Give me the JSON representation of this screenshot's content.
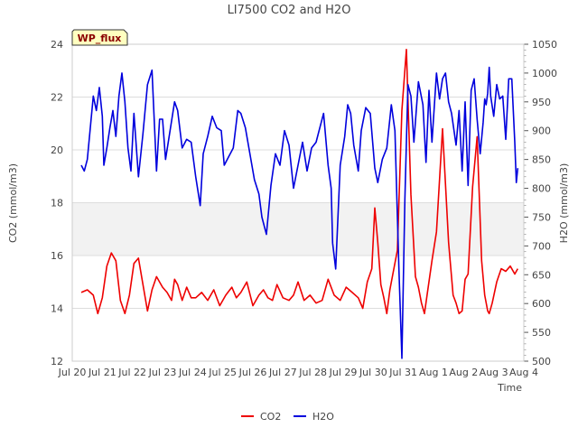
{
  "chart_data": {
    "type": "line",
    "title": "LI7500 CO2 and H2O",
    "badge": "WP_flux",
    "xlabel": "Time",
    "ylabel_left": "CO2 (mmol/m3)",
    "ylabel_right": "H2O (mmol/m3)",
    "ylim_left": [
      12,
      24
    ],
    "ylim_right": [
      500,
      1050
    ],
    "xlim_days": [
      0,
      15
    ],
    "x_tick_labels": [
      "Jul 20",
      "Jul 21",
      "Jul 22",
      "Jul 23",
      "Jul 24",
      "Jul 25",
      "Jul 26",
      "Jul 27",
      "Jul 28",
      "Jul 29",
      "Jul 30",
      "Jul 31",
      "Aug 1",
      "Aug 2",
      "Aug 3",
      "Aug 4"
    ],
    "y_left_ticks": [
      12,
      14,
      16,
      18,
      20,
      22,
      24
    ],
    "y_right_ticks": [
      500,
      550,
      600,
      650,
      700,
      750,
      800,
      850,
      900,
      950,
      1000,
      1050
    ],
    "grid": true,
    "legend_position": "bottom-center",
    "colors": {
      "CO2": "#ee0000",
      "H2O": "#0000dd",
      "band": "#f2f2f2",
      "badge_bg": "#ffffc0",
      "badge_text": "#8b0000"
    },
    "series": [
      {
        "name": "CO2",
        "axis": "left",
        "x": [
          0.3,
          0.5,
          0.7,
          0.85,
          1.0,
          1.15,
          1.3,
          1.45,
          1.6,
          1.75,
          1.9,
          2.05,
          2.2,
          2.35,
          2.5,
          2.65,
          2.8,
          3.0,
          3.15,
          3.3,
          3.4,
          3.5,
          3.65,
          3.8,
          3.95,
          4.1,
          4.3,
          4.5,
          4.7,
          4.9,
          5.1,
          5.3,
          5.45,
          5.6,
          5.8,
          6.0,
          6.2,
          6.35,
          6.5,
          6.65,
          6.8,
          7.0,
          7.2,
          7.35,
          7.5,
          7.7,
          7.9,
          8.1,
          8.3,
          8.5,
          8.7,
          8.9,
          9.1,
          9.3,
          9.5,
          9.65,
          9.8,
          9.95,
          10.05,
          10.15,
          10.25,
          10.35,
          10.45,
          10.55,
          10.65,
          10.8,
          10.95,
          11.1,
          11.25,
          11.4,
          11.5,
          11.55,
          11.6,
          11.7,
          11.8,
          11.95,
          12.1,
          12.3,
          12.5,
          12.65,
          12.75,
          12.85,
          12.95,
          13.05,
          13.15,
          13.3,
          13.45,
          13.6,
          13.7,
          13.8,
          13.85,
          13.95,
          14.1,
          14.25,
          14.4,
          14.55,
          14.7,
          14.8
        ],
        "values": [
          14.6,
          14.7,
          14.5,
          13.8,
          14.4,
          15.6,
          16.1,
          15.8,
          14.3,
          13.8,
          14.5,
          15.7,
          15.9,
          14.9,
          13.9,
          14.7,
          15.2,
          14.8,
          14.6,
          14.3,
          15.1,
          14.9,
          14.3,
          14.8,
          14.4,
          14.4,
          14.6,
          14.3,
          14.7,
          14.1,
          14.5,
          14.8,
          14.4,
          14.6,
          15.0,
          14.1,
          14.5,
          14.7,
          14.4,
          14.3,
          14.9,
          14.4,
          14.3,
          14.5,
          15.0,
          14.3,
          14.5,
          14.2,
          14.3,
          15.1,
          14.5,
          14.3,
          14.8,
          14.6,
          14.4,
          14.0,
          15.0,
          15.5,
          17.8,
          16.5,
          14.9,
          14.4,
          13.8,
          14.7,
          15.3,
          16.2,
          21.5,
          23.8,
          18.3,
          15.2,
          14.8,
          14.5,
          14.2,
          13.8,
          14.6,
          15.8,
          16.9,
          20.8,
          16.5,
          14.5,
          14.2,
          13.8,
          13.9,
          15.1,
          15.3,
          18.6,
          20.5,
          15.8,
          14.5,
          13.9,
          13.8,
          14.2,
          15.0,
          15.5,
          15.4,
          15.6,
          15.3,
          15.5
        ]
      },
      {
        "name": "H2O",
        "axis": "right",
        "x": [
          0.3,
          0.4,
          0.5,
          0.6,
          0.7,
          0.8,
          0.9,
          1.0,
          1.05,
          1.15,
          1.25,
          1.35,
          1.45,
          1.55,
          1.65,
          1.75,
          1.85,
          1.95,
          2.05,
          2.2,
          2.35,
          2.5,
          2.65,
          2.8,
          2.9,
          3.0,
          3.1,
          3.25,
          3.4,
          3.5,
          3.65,
          3.8,
          3.95,
          4.1,
          4.25,
          4.35,
          4.5,
          4.65,
          4.8,
          4.95,
          5.05,
          5.2,
          5.35,
          5.5,
          5.6,
          5.75,
          5.9,
          6.05,
          6.2,
          6.3,
          6.45,
          6.6,
          6.75,
          6.9,
          7.05,
          7.2,
          7.35,
          7.5,
          7.65,
          7.8,
          7.95,
          8.1,
          8.2,
          8.35,
          8.5,
          8.6,
          8.65,
          8.75,
          8.9,
          9.05,
          9.15,
          9.25,
          9.35,
          9.5,
          9.6,
          9.75,
          9.9,
          10.05,
          10.15,
          10.3,
          10.45,
          10.6,
          10.72,
          10.78,
          10.85,
          10.95,
          11.05,
          11.15,
          11.25,
          11.35,
          11.5,
          11.65,
          11.75,
          11.85,
          11.95,
          12.1,
          12.2,
          12.3,
          12.4,
          12.5,
          12.6,
          12.75,
          12.85,
          12.95,
          13.05,
          13.15,
          13.25,
          13.35,
          13.45,
          13.55,
          13.65,
          13.7,
          13.75,
          13.8,
          13.85,
          13.9,
          14.0,
          14.1,
          14.2,
          14.3,
          14.4,
          14.5,
          14.6,
          14.7,
          14.75,
          14.8
        ],
        "values": [
          840,
          830,
          850,
          905,
          960,
          935,
          975,
          925,
          840,
          870,
          905,
          935,
          890,
          960,
          1000,
          950,
          870,
          830,
          930,
          820,
          895,
          980,
          1005,
          830,
          920,
          920,
          850,
          900,
          950,
          935,
          870,
          885,
          880,
          820,
          770,
          860,
          890,
          925,
          905,
          900,
          840,
          855,
          870,
          935,
          930,
          905,
          860,
          815,
          790,
          750,
          720,
          805,
          860,
          840,
          900,
          875,
          800,
          840,
          880,
          830,
          870,
          880,
          900,
          930,
          840,
          800,
          705,
          660,
          840,
          890,
          945,
          930,
          875,
          830,
          900,
          940,
          930,
          835,
          810,
          850,
          870,
          945,
          900,
          790,
          660,
          505,
          780,
          980,
          960,
          880,
          985,
          945,
          845,
          970,
          880,
          1000,
          955,
          990,
          1000,
          950,
          930,
          875,
          935,
          830,
          950,
          805,
          970,
          990,
          920,
          860,
          915,
          955,
          945,
          965,
          1010,
          960,
          925,
          980,
          955,
          960,
          885,
          990,
          990,
          880,
          810,
          835
        ]
      }
    ]
  }
}
